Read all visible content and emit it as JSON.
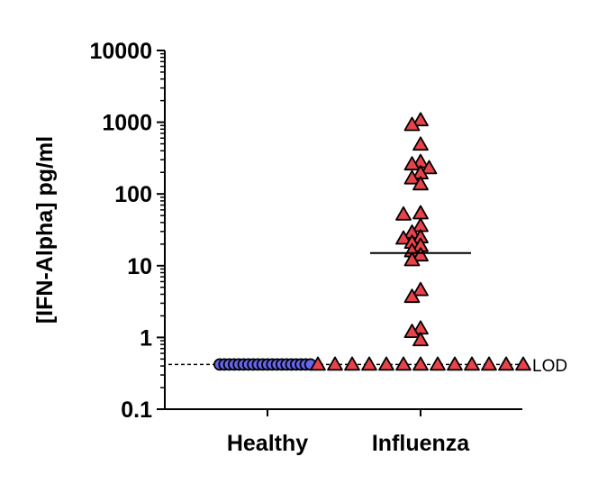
{
  "chart_data": {
    "type": "scatter",
    "title": "",
    "xlabel": "",
    "ylabel": "[IFN-Alpha] pg/ml",
    "yscale": "log",
    "ylim": [
      0.1,
      10000
    ],
    "yticks": [
      "0.1",
      "1",
      "10",
      "100",
      "1000",
      "10000"
    ],
    "categories": [
      "Healthy",
      "Influenza"
    ],
    "series": [
      {
        "category": "Healthy",
        "marker": "circle",
        "color": "#6666ee",
        "values": [
          0.42,
          0.42,
          0.42,
          0.42,
          0.42,
          0.42,
          0.42,
          0.42,
          0.42,
          0.42,
          0.42,
          0.42,
          0.42,
          0.42,
          0.42,
          0.42,
          0.42,
          0.42,
          0.42,
          0.42
        ]
      },
      {
        "category": "Influenza",
        "marker": "triangle",
        "color": "#e8434a",
        "median": 15,
        "values": [
          1070,
          920,
          490,
          280,
          260,
          230,
          195,
          166,
          137,
          54,
          52,
          36,
          29,
          25,
          24,
          21,
          19,
          16,
          14,
          12,
          4.6,
          3.7,
          1.34,
          1.2,
          0.92,
          0.42,
          0.42,
          0.42,
          0.42,
          0.42,
          0.42,
          0.42,
          0.42,
          0.42,
          0.42,
          0.42,
          0.42,
          0.42
        ]
      }
    ],
    "reference_line": {
      "label": "LOD",
      "value": 0.42,
      "style": "dashed"
    },
    "grid": false,
    "legend": "none"
  }
}
